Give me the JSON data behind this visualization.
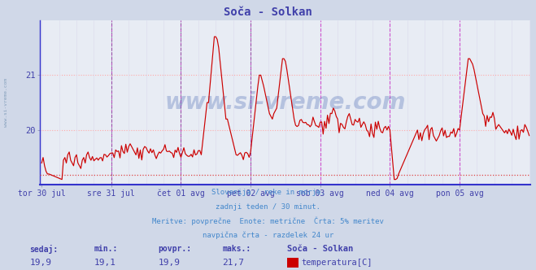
{
  "title": "Soča - Solkan",
  "title_color": "#4040aa",
  "bg_color": "#d0d8e8",
  "plot_bg_color": "#e8ecf4",
  "grid_color_h": "#ffaaaa",
  "grid_color_v": "#ddddee",
  "xlabel_color": "#4040aa",
  "ylabel_color": "#4040aa",
  "line_color": "#cc0000",
  "hline_color": "#dd4444",
  "vline_magenta": "#cc44cc",
  "vline_dark": "#555577",
  "y_axis_min": 19.0,
  "y_axis_max": 22.0,
  "y_ticks": [
    20.0,
    21.0
  ],
  "x_labels": [
    "tor 30 jul",
    "sre 31 jul",
    "čet 01 avg",
    "pet 02 avg",
    "sob 03 avg",
    "ned 04 avg",
    "pon 05 avg"
  ],
  "footer_lines": [
    "Slovenija / reke in morje.",
    "zadnji teden / 30 minut.",
    "Meritve: povprečne  Enote: metrične  Črta: 5% meritev",
    "navpična črta - razdelek 24 ur"
  ],
  "footer_color": "#4488cc",
  "stats_labels": [
    "sedaj:",
    "min.:",
    "povpr.:",
    "maks.:"
  ],
  "stats_values": [
    "19,9",
    "19,1",
    "19,9",
    "21,7"
  ],
  "stats_color": "#4040aa",
  "legend_title": "Soča - Solkan",
  "legend_label": "temperatura[C]",
  "legend_color": "#cc0000",
  "watermark": "www.si-vreme.com",
  "watermark_color": "#3355aa",
  "num_points": 337,
  "hline_y": 19.19,
  "spine_color_bottom": "#3333cc",
  "spine_color_left": "#3333cc"
}
